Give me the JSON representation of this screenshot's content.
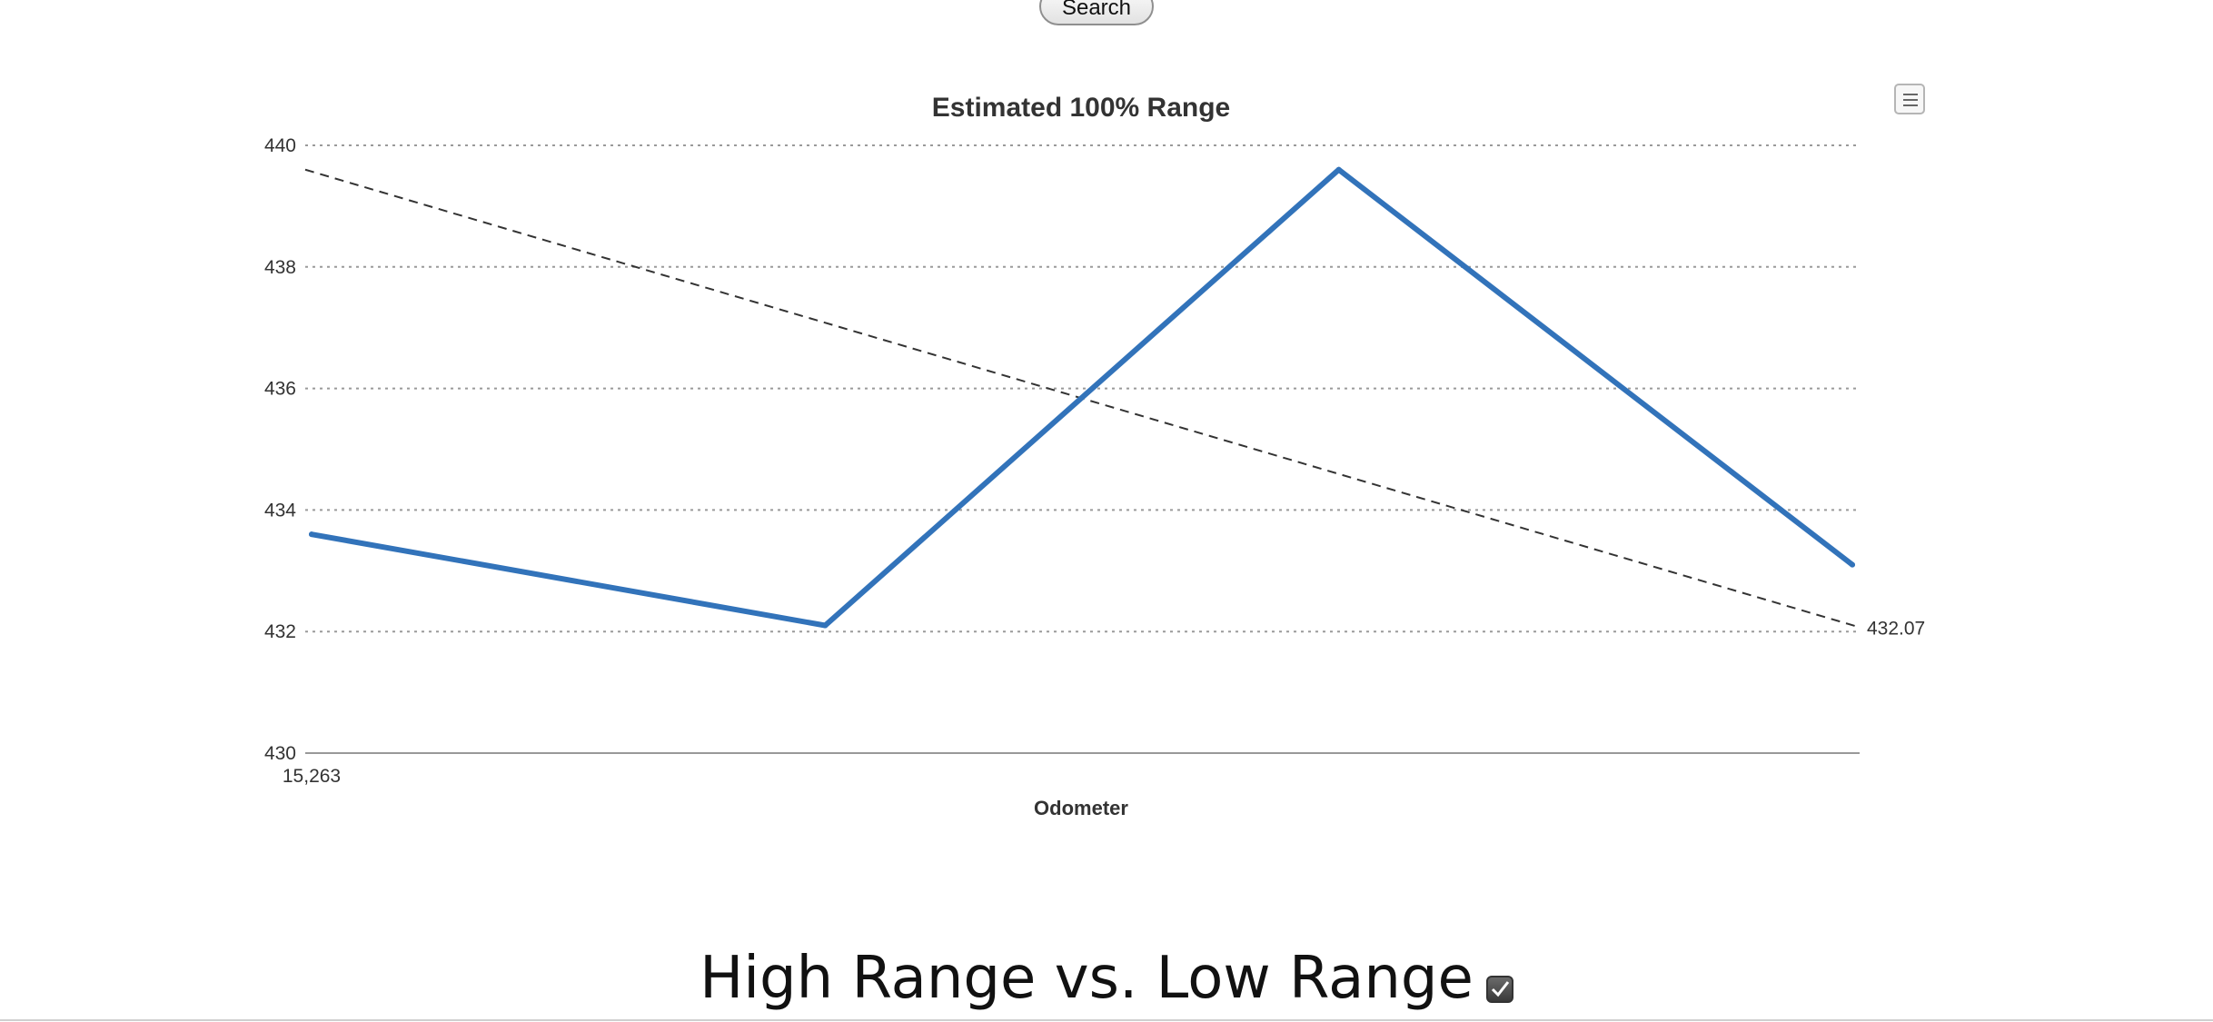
{
  "toolbar": {
    "search_label": "Search"
  },
  "chart_data": {
    "type": "line",
    "title": "Estimated 100% Range",
    "xlabel": "Odometer",
    "ylabel": "",
    "ylim": [
      430,
      440
    ],
    "y_ticks": [
      "430",
      "432",
      "434",
      "436",
      "438",
      "440"
    ],
    "x_ticks": [
      "15,263"
    ],
    "grid": true,
    "series": [
      {
        "values": [
          433.6,
          432.1,
          439.6,
          433.1
        ],
        "color": "#3273ba"
      }
    ],
    "trendline": {
      "start": 439.6,
      "end": 432.07,
      "end_label": "432.07",
      "color": "#333333",
      "dashed": true
    }
  },
  "chart_menu": {
    "icon": "hamburger-menu-icon"
  },
  "section": {
    "heading": "High Range vs. Low Range",
    "checkbox_checked": true,
    "checkbox_icon": "checkbox-checked-icon"
  }
}
